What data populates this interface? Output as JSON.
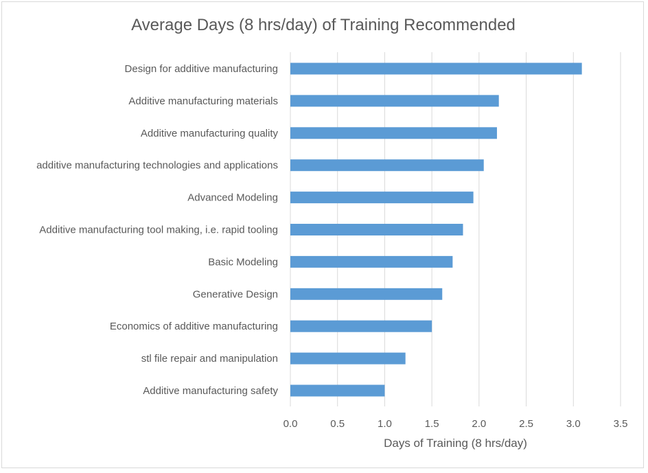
{
  "chart_data": {
    "type": "bar",
    "orientation": "horizontal",
    "title": "Average Days (8 hrs/day) of Training Recommended",
    "xlabel": "Days of Training (8 hrs/day)",
    "ylabel": "",
    "xlim": [
      0,
      3.5
    ],
    "xticks": [
      "0.0",
      "0.5",
      "1.0",
      "1.5",
      "2.0",
      "2.5",
      "3.0",
      "3.5"
    ],
    "grid": "vertical",
    "legend": "none",
    "bar_color": "#5b9bd5",
    "categories": [
      "Design for additive manufacturing",
      "Additive manufacturing materials",
      "Additive manufacturing quality",
      "additive manufacturing technologies and applications",
      "Advanced Modeling",
      "Additive manufacturing tool making, i.e. rapid tooling",
      "Basic Modeling",
      "Generative Design",
      "Economics of additive manufacturing",
      "stl file repair and manipulation",
      "Additive manufacturing safety"
    ],
    "values": [
      3.09,
      2.21,
      2.19,
      2.05,
      1.94,
      1.83,
      1.72,
      1.61,
      1.5,
      1.22,
      1.0
    ]
  }
}
